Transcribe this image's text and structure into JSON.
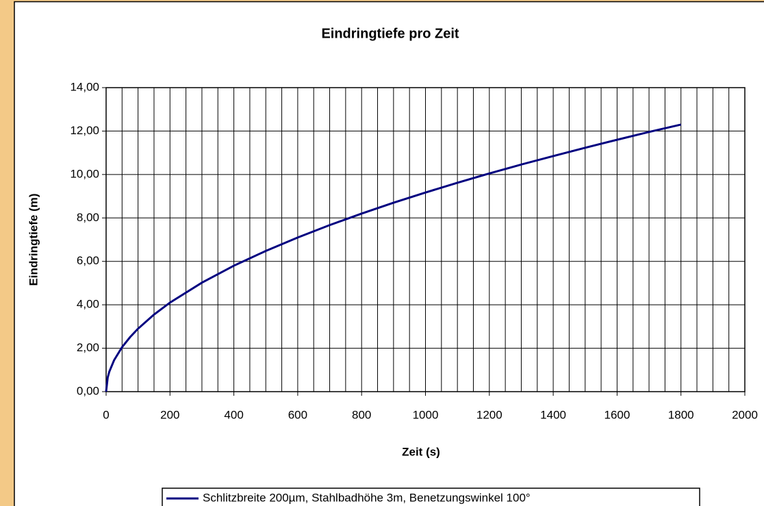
{
  "chart_data": {
    "type": "line",
    "title": "Eindringtiefe pro Zeit",
    "xlabel": "Zeit (s)",
    "ylabel": "Eindringtiefe (m)",
    "x": [
      0,
      5,
      10,
      25,
      50,
      75,
      100,
      150,
      200,
      300,
      400,
      500,
      600,
      700,
      800,
      900,
      1000,
      1100,
      1200,
      1300,
      1400,
      1500,
      1600,
      1700,
      1800
    ],
    "series": [
      {
        "name": "Schlitzbreite 200µm, Stahlbadhöhe 3m, Benetzungswinkel 100°",
        "color": "#000080",
        "values": [
          0,
          0.65,
          0.92,
          1.45,
          2.05,
          2.51,
          2.9,
          3.55,
          4.1,
          5.02,
          5.8,
          6.48,
          7.1,
          7.67,
          8.2,
          8.7,
          9.17,
          9.62,
          10.05,
          10.46,
          10.85,
          11.23,
          11.6,
          11.96,
          12.3
        ]
      }
    ],
    "xlim": [
      0,
      2000
    ],
    "xticks": [
      0,
      200,
      400,
      600,
      800,
      1000,
      1200,
      1400,
      1600,
      1800,
      2000
    ],
    "xgrid": [
      0,
      50,
      100,
      150,
      200,
      250,
      300,
      350,
      400,
      450,
      500,
      550,
      600,
      650,
      700,
      750,
      800,
      850,
      900,
      950,
      1000,
      1050,
      1100,
      1150,
      1200,
      1250,
      1300,
      1350,
      1400,
      1450,
      1500,
      1550,
      1600,
      1650,
      1700,
      1750,
      1800,
      1850,
      1900,
      1950,
      2000
    ],
    "ylim": [
      0,
      14
    ],
    "yticks": [
      {
        "value": 0,
        "label": "0,00"
      },
      {
        "value": 2,
        "label": "2,00"
      },
      {
        "value": 4,
        "label": "4,00"
      },
      {
        "value": 6,
        "label": "6,00"
      },
      {
        "value": 8,
        "label": "8,00"
      },
      {
        "value": 10,
        "label": "10,00"
      },
      {
        "value": 12,
        "label": "12,00"
      },
      {
        "value": 14,
        "label": "14,00"
      }
    ],
    "grid": true,
    "legend": "bottom"
  }
}
